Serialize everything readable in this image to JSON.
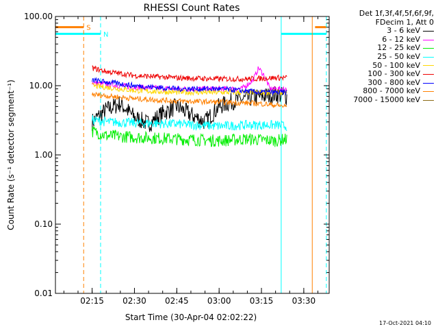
{
  "chart_data": {
    "type": "line",
    "title": "RHESSI Count Rates",
    "xlabel": "Start Time (30-Apr-04 02:02:22)",
    "ylabel": "Count Rate (s⁻¹ detector segment⁻¹)",
    "yscale": "log",
    "ylim": [
      0.01,
      100
    ],
    "xlim": [
      "02:02",
      "03:39"
    ],
    "x_ticks": [
      "02:15",
      "02:30",
      "02:45",
      "03:00",
      "03:15",
      "03:30"
    ],
    "y_ticks": [
      "0.01",
      "0.10",
      "1.00",
      "10.00",
      "100.00"
    ],
    "legend_header": [
      "Det 1f,3f,4f,5f,6f,9f,",
      "FDecim 1, Att 0"
    ],
    "series": [
      {
        "name": "3 - 6 keV",
        "color": "#000000",
        "x": [
          "02:15",
          "02:20",
          "02:25",
          "02:30",
          "02:35",
          "02:40",
          "02:45",
          "02:50",
          "02:55",
          "03:00",
          "03:05",
          "03:10",
          "03:15",
          "03:20",
          "03:24"
        ],
        "values": [
          3.0,
          4.5,
          5.5,
          3.5,
          2.8,
          4.0,
          5.0,
          3.8,
          3.0,
          5.0,
          6.0,
          6.5,
          7.0,
          7.5,
          7.0
        ]
      },
      {
        "name": "6 - 12 keV",
        "color": "#ff00ff",
        "x": [
          "02:15",
          "02:30",
          "02:45",
          "03:00",
          "03:08",
          "03:12",
          "03:14",
          "03:16",
          "03:18",
          "03:24"
        ],
        "values": [
          11.0,
          9.5,
          9.0,
          9.0,
          9.0,
          12.0,
          18.0,
          14.0,
          9.0,
          9.0
        ]
      },
      {
        "name": "12 - 25 keV",
        "color": "#00ee00",
        "x": [
          "02:15",
          "02:20",
          "02:30",
          "02:45",
          "03:00",
          "03:10",
          "03:20",
          "03:24"
        ],
        "values": [
          2.2,
          1.9,
          1.8,
          1.7,
          1.6,
          1.7,
          1.6,
          1.7
        ]
      },
      {
        "name": "25 - 50 keV",
        "color": "#00ffff",
        "x": [
          "02:15",
          "02:20",
          "02:30",
          "02:45",
          "03:00",
          "03:10",
          "03:20",
          "03:24"
        ],
        "values": [
          3.2,
          3.0,
          2.9,
          2.8,
          2.6,
          2.7,
          2.7,
          2.6
        ]
      },
      {
        "name": "50 - 100 keV",
        "color": "#ffd700",
        "x": [
          "02:15",
          "02:30",
          "02:45",
          "03:00",
          "03:15",
          "03:24"
        ],
        "values": [
          10.0,
          8.5,
          8.0,
          8.0,
          8.0,
          8.0
        ]
      },
      {
        "name": "100 - 300 keV",
        "color": "#ee0000",
        "x": [
          "02:15",
          "02:20",
          "02:30",
          "02:45",
          "03:00",
          "03:10",
          "03:20",
          "03:24"
        ],
        "values": [
          18.0,
          16.0,
          14.0,
          13.0,
          12.5,
          12.5,
          13.0,
          13.0
        ]
      },
      {
        "name": "300 - 800 keV",
        "color": "#0000ff",
        "x": [
          "02:15",
          "02:30",
          "02:45",
          "03:00",
          "03:15",
          "03:24"
        ],
        "values": [
          12.0,
          10.0,
          9.0,
          9.0,
          8.0,
          8.0
        ]
      },
      {
        "name": "800 - 7000 keV",
        "color": "#ff8000",
        "x": [
          "02:15",
          "02:30",
          "02:45",
          "03:00",
          "03:15",
          "03:24"
        ],
        "values": [
          7.5,
          6.5,
          6.0,
          5.8,
          5.5,
          5.0
        ]
      },
      {
        "name": "7000 - 15000 keV",
        "color": "#8b6914",
        "x": [],
        "values": []
      }
    ],
    "vlines": [
      {
        "x": "02:12",
        "color": "#ff8000",
        "style": "dashed"
      },
      {
        "x": "02:18",
        "color": "#00ffff",
        "style": "dashed"
      },
      {
        "x": "03:22",
        "color": "#00ffff",
        "style": "solid"
      },
      {
        "x": "03:33",
        "color": "#ff8000",
        "style": "solid"
      },
      {
        "x": "03:38",
        "color": "#00ffff",
        "style": "dashed"
      }
    ],
    "flag_bars": [
      {
        "label": "S",
        "color": "#ff8000",
        "value": 70,
        "segments": [
          [
            "02:02",
            "02:12"
          ],
          [
            "03:34",
            "03:38"
          ]
        ]
      },
      {
        "label": "N",
        "color": "#00ffff",
        "value": 56,
        "segments": [
          [
            "02:02",
            "02:18"
          ],
          [
            "03:22",
            "03:38"
          ]
        ]
      }
    ],
    "legend": "right",
    "grid": false
  },
  "footer": "17-Oct-2021 04:10"
}
